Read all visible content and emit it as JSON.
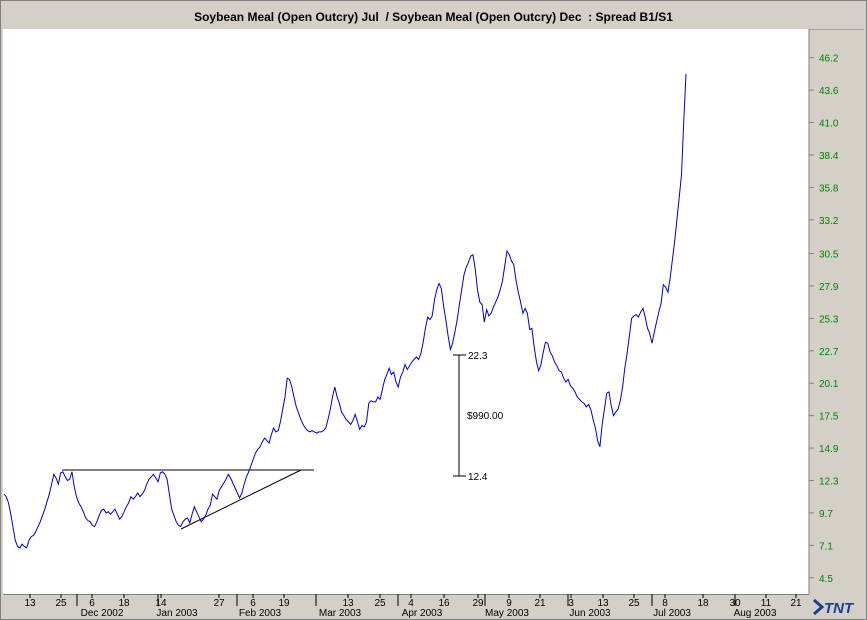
{
  "title": "Soybean Meal (Open Outcry) Jul  / Soybean Meal (Open Outcry) Dec  : Spread B1/S1",
  "logo_text": "TNT",
  "colors": {
    "series": "#0000cc",
    "y_labels": "#008000",
    "background": "#ffffff"
  },
  "chart_data": {
    "type": "line",
    "y_ticks": [
      "46.2",
      "43.6",
      "41.0",
      "38.4",
      "35.8",
      "33.2",
      "30.5",
      "27.9",
      "25.3",
      "22.7",
      "20.1",
      "17.5",
      "14.9",
      "12.3",
      "9.7",
      "7.1",
      "4.5"
    ],
    "ylim": [
      3.2,
      48.5
    ],
    "x_day_ticks": [
      "13",
      "25",
      "6",
      "18",
      "14",
      "27",
      "6",
      "19",
      "13",
      "25",
      "4",
      "16",
      "29",
      "9",
      "21",
      "3",
      "13",
      "25",
      "8",
      "18",
      "30",
      "11",
      "21"
    ],
    "x_month_labels": [
      "Dec 2002",
      "Jan 2003",
      "Feb 2003",
      "Mar 2003",
      "Apr 2003",
      "May 2003",
      "Jun 2003",
      "Jul 2003",
      "Aug 2003"
    ],
    "annotations": {
      "high": "22.3",
      "low": "12.4",
      "difference": "$990.00"
    },
    "series": [
      {
        "values": [
          11.2,
          11.0,
          10.5,
          9.6,
          8.5,
          7.5,
          7.0,
          6.9,
          7.2,
          7.0,
          6.9,
          7.5,
          7.8,
          7.9,
          8.2,
          8.6,
          9.0,
          9.5,
          10.0,
          10.6,
          11.2,
          12.0,
          12.8,
          12.5,
          12.0,
          12.9,
          13.0,
          12.6,
          12.3,
          12.4,
          13.0,
          11.8,
          11.0,
          10.5,
          10.2,
          9.8,
          9.3,
          9.1,
          9.0,
          8.7,
          8.6,
          9.0,
          9.5,
          9.9,
          10.0,
          9.7,
          9.8,
          9.6,
          9.8,
          10.0,
          9.6,
          9.2,
          9.4,
          9.8,
          10.2,
          10.5,
          11.0,
          10.8,
          11.0,
          11.3,
          11.0,
          11.2,
          11.5,
          12.0,
          12.4,
          12.6,
          12.8,
          12.5,
          12.2,
          12.9,
          13.0,
          12.8,
          12.4,
          11.2,
          10.0,
          9.5,
          9.0,
          8.7,
          8.6,
          9.0,
          9.2,
          9.3,
          8.9,
          9.6,
          10.2,
          9.8,
          9.4,
          9.0,
          9.2,
          9.5,
          10.0,
          10.3,
          11.2,
          11.0,
          10.8,
          11.5,
          11.8,
          12.1,
          12.4,
          12.8,
          12.5,
          12.1,
          11.7,
          11.3,
          10.9,
          11.3,
          12.0,
          12.6,
          13.0,
          13.5,
          14.0,
          14.5,
          14.8,
          15.0,
          15.4,
          15.7,
          15.5,
          15.3,
          16.0,
          16.5,
          16.2,
          16.3,
          17.0,
          18.0,
          19.0,
          20.5,
          20.4,
          19.8,
          19.0,
          18.2,
          17.7,
          17.2,
          16.8,
          16.5,
          16.3,
          16.2,
          16.3,
          16.2,
          16.1,
          16.2,
          16.2,
          16.3,
          16.5,
          17.2,
          18.0,
          19.0,
          19.8,
          19.0,
          18.5,
          17.8,
          17.5,
          17.2,
          17.0,
          16.8,
          17.1,
          17.6,
          17.0,
          16.4,
          16.7,
          16.6,
          17.0,
          18.5,
          18.7,
          18.6,
          18.6,
          19.0,
          18.8,
          19.6,
          20.4,
          20.8,
          21.3,
          20.8,
          21.0,
          20.2,
          19.8,
          20.6,
          21.0,
          21.6,
          21.2,
          21.5,
          21.8,
          22.0,
          22.2,
          22.0,
          22.5,
          23.4,
          24.5,
          25.4,
          25.2,
          25.5,
          26.8,
          27.6,
          28.1,
          27.7,
          26.3,
          25.2,
          23.9,
          22.8,
          23.3,
          24.2,
          25.2,
          26.4,
          27.6,
          28.8,
          29.4,
          29.8,
          30.3,
          30.4,
          29.2,
          27.6,
          26.6,
          26.4,
          25.0,
          26.0,
          25.5,
          25.7,
          26.2,
          26.6,
          27.0,
          27.6,
          28.3,
          29.5,
          30.7,
          30.4,
          29.9,
          29.6,
          28.3,
          27.4,
          26.6,
          25.7,
          26.1,
          25.7,
          24.4,
          24.5,
          23.0,
          21.8,
          21.1,
          21.6,
          22.6,
          23.4,
          23.3,
          22.6,
          22.3,
          21.8,
          21.5,
          21.1,
          21.0,
          20.5,
          20.2,
          20.4,
          19.9,
          19.7,
          19.4,
          19.0,
          18.8,
          18.6,
          18.5,
          18.2,
          18.4,
          18.0,
          17.2,
          16.5,
          15.5,
          15.0,
          16.8,
          18.0,
          19.3,
          19.4,
          18.3,
          17.5,
          17.8,
          18.0,
          18.7,
          19.8,
          21.3,
          22.5,
          23.9,
          25.3,
          25.5,
          25.6,
          25.4,
          25.8,
          26.1,
          25.4,
          24.5,
          24.1,
          23.3,
          24.2,
          25.0,
          25.8,
          26.5,
          28.0,
          27.8,
          27.4,
          28.5,
          30.0,
          31.5,
          33.2,
          35.0,
          36.8,
          41.0,
          44.9
        ]
      }
    ]
  }
}
